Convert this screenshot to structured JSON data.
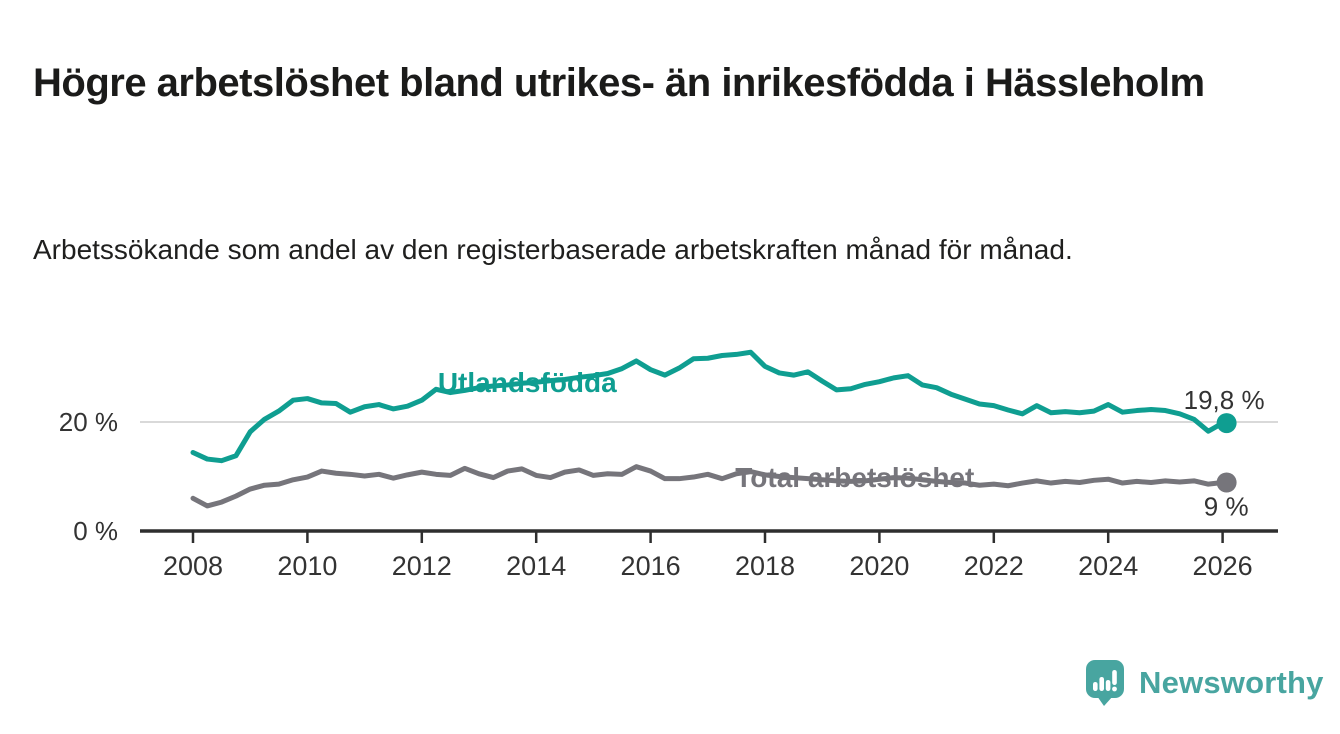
{
  "title": "Högre arbetslöshet bland utrikes- än inrikesfödda i Hässleholm",
  "subtitle": "Arbetssökande som andel av den registerbaserade arbetskraften månad för månad.",
  "branding": {
    "logo_text": "Newsworthy",
    "logo_icon": "speech-bubble-bar-chart-icon"
  },
  "colors": {
    "foreign_born_line": "#0f9e91",
    "total_line": "#76757b",
    "axis": "#2e2e2e",
    "gridline": "#d9d9d9",
    "text": "#333333",
    "brand_teal": "#48a5a0"
  },
  "chart_data": {
    "type": "line",
    "title": "Högre arbetslöshet bland utrikes- än inrikesfödda i Hässleholm",
    "subtitle": "Arbetssökande som andel av den registerbaserade arbetskraften månad för månad.",
    "unit": "%",
    "grid": "horizontal-only",
    "legend_position": "inline-labels-on-lines",
    "x_axis": {
      "label": "",
      "range_years": [
        2007.1,
        2027.0
      ],
      "ticks": [
        {
          "value": 2008,
          "label": "2008"
        },
        {
          "value": 2010,
          "label": "2010"
        },
        {
          "value": 2012,
          "label": "2012"
        },
        {
          "value": 2014,
          "label": "2014"
        },
        {
          "value": 2016,
          "label": "2016"
        },
        {
          "value": 2018,
          "label": "2018"
        },
        {
          "value": 2020,
          "label": "2020"
        },
        {
          "value": 2022,
          "label": "2022"
        },
        {
          "value": 2024,
          "label": "2024"
        },
        {
          "value": 2026,
          "label": "2026"
        }
      ]
    },
    "y_axis": {
      "label": "",
      "range": [
        0,
        36
      ],
      "ticks": [
        {
          "value": 0,
          "label": "0 %"
        },
        {
          "value": 20,
          "label": "20 %"
        }
      ]
    },
    "series": [
      {
        "id": "utlandsfodda",
        "name": "Utlandsfödda",
        "color": "#0f9e91",
        "end_label": "19,8 %",
        "end_value": 19.8,
        "label_pos": {
          "x_year": 2012.28,
          "y_value": 25.5
        },
        "start_year": 2008.0,
        "step_years": 0.25,
        "values": [
          14.4,
          13.2,
          12.9,
          13.8,
          18.2,
          20.5,
          22.0,
          24.0,
          24.3,
          23.5,
          23.4,
          21.8,
          22.8,
          23.2,
          22.4,
          22.9,
          24.0,
          26.0,
          25.4,
          25.8,
          26.3,
          26.6,
          26.8,
          27.1,
          27.3,
          27.6,
          27.8,
          28.2,
          28.5,
          28.9,
          29.8,
          31.2,
          29.6,
          28.6,
          29.9,
          31.6,
          31.7,
          32.2,
          32.4,
          32.8,
          30.2,
          29.0,
          28.6,
          29.2,
          27.5,
          25.9,
          26.1,
          26.9,
          27.4,
          28.1,
          28.5,
          26.8,
          26.3,
          25.1,
          24.2,
          23.3,
          23.0,
          22.2,
          21.5,
          23.0,
          21.7,
          21.9,
          21.7,
          22.0,
          23.2,
          21.8,
          22.1,
          22.3,
          22.1,
          21.5,
          20.5,
          18.3,
          19.8
        ]
      },
      {
        "id": "total",
        "name": "Total arbetslöshet",
        "color": "#76757b",
        "end_label": "9 %",
        "end_value": 9,
        "label_pos": {
          "x_year": 2017.48,
          "y_value": 8.1
        },
        "start_year": 2008.0,
        "step_years": 0.25,
        "values": [
          6.0,
          4.6,
          5.3,
          6.4,
          7.7,
          8.4,
          8.6,
          9.4,
          9.9,
          11.0,
          10.6,
          10.4,
          10.1,
          10.4,
          9.7,
          10.3,
          10.8,
          10.4,
          10.2,
          11.5,
          10.5,
          9.8,
          11.0,
          11.4,
          10.2,
          9.8,
          10.8,
          11.2,
          10.2,
          10.5,
          10.4,
          11.8,
          11.0,
          9.6,
          9.6,
          9.9,
          10.4,
          9.6,
          10.5,
          10.9,
          10.3,
          10.0,
          9.8,
          9.6,
          9.4,
          9.2,
          9.1,
          9.2,
          9.5,
          9.8,
          9.7,
          9.4,
          9.1,
          8.9,
          8.8,
          8.4,
          8.6,
          8.3,
          8.8,
          9.2,
          8.8,
          9.1,
          8.9,
          9.3,
          9.5,
          8.8,
          9.1,
          8.9,
          9.2,
          9.0,
          9.2,
          8.6,
          8.9
        ]
      }
    ]
  }
}
